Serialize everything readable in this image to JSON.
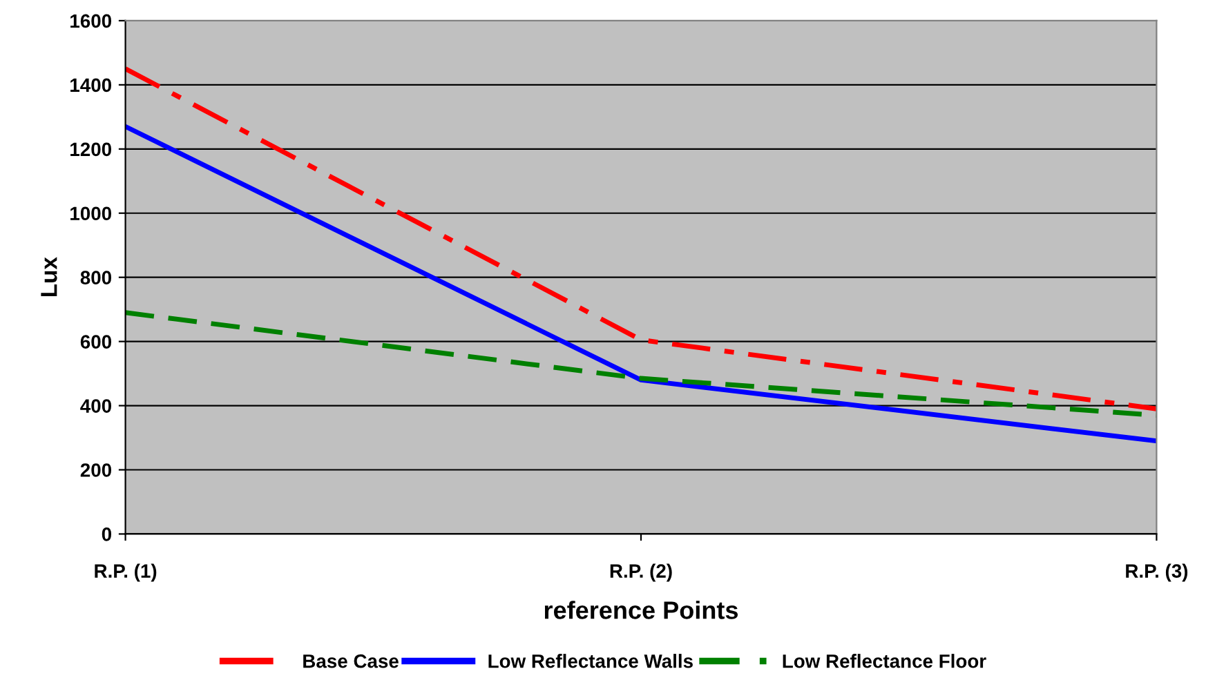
{
  "chart_data": {
    "type": "line",
    "xlabel": "reference Points",
    "ylabel": "Lux",
    "categories": [
      "R.P. (1)",
      "R.P. (2)",
      "R.P. (3)"
    ],
    "series": [
      {
        "name": "Base Case",
        "color": "#ff0000",
        "values": [
          1450,
          605,
          390
        ],
        "line_style": "dashdot"
      },
      {
        "name": "Low Reflectance Walls",
        "color": "#0000ff",
        "values": [
          1270,
          480,
          290
        ],
        "line_style": "solid"
      },
      {
        "name": "Low Reflectance Floor",
        "color": "#008000",
        "values": [
          690,
          485,
          370
        ],
        "line_style": "dashed"
      }
    ],
    "ylim": [
      0,
      1600
    ],
    "yticks": [
      0,
      200,
      400,
      600,
      800,
      1000,
      1200,
      1400,
      1600
    ],
    "grid": "y",
    "legend": "bottom",
    "marker": "none"
  }
}
